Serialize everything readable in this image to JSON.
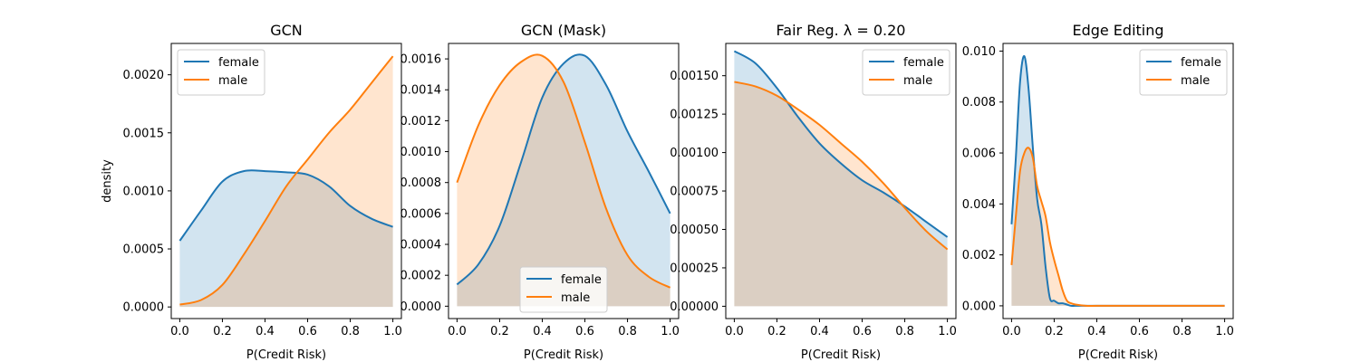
{
  "chart_data": [
    {
      "type": "area",
      "title": "GCN",
      "xlabel": "P(Credit Risk)",
      "ylabel": "density",
      "xlim": [
        -0.04,
        1.04
      ],
      "ylim": [
        -0.0001,
        0.00227
      ],
      "xticks": [
        "0.0",
        "0.2",
        "0.4",
        "0.6",
        "0.8",
        "1.0"
      ],
      "yticks": [
        "0.0000",
        "0.0005",
        "0.0010",
        "0.0015",
        "0.0020"
      ],
      "legend_position": "upper-left",
      "x": [
        0.0,
        0.1,
        0.2,
        0.3,
        0.4,
        0.5,
        0.6,
        0.7,
        0.8,
        0.9,
        1.0
      ],
      "series": [
        {
          "name": "female",
          "color": "#1f77b4",
          "values": [
            0.00057,
            0.00083,
            0.00108,
            0.00117,
            0.00117,
            0.00116,
            0.00114,
            0.00104,
            0.00087,
            0.00076,
            0.00069
          ]
        },
        {
          "name": "male",
          "color": "#ff7f0e",
          "values": [
            2e-05,
            6e-05,
            0.00019,
            0.00045,
            0.00074,
            0.00104,
            0.00127,
            0.0015,
            0.0017,
            0.00193,
            0.00216
          ]
        }
      ]
    },
    {
      "type": "area",
      "title": "GCN (Mask)",
      "xlabel": "P(Credit Risk)",
      "ylabel": "",
      "xlim": [
        -0.04,
        1.04
      ],
      "ylim": [
        -8e-05,
        0.0017
      ],
      "xticks": [
        "0.0",
        "0.2",
        "0.4",
        "0.6",
        "0.8",
        "1.0"
      ],
      "yticks": [
        "0.0000",
        "0.0002",
        "0.0004",
        "0.0006",
        "0.0008",
        "0.0010",
        "0.0012",
        "0.0014",
        "0.0016"
      ],
      "legend_position": "lower-center",
      "x": [
        0.0,
        0.1,
        0.2,
        0.3,
        0.4,
        0.5,
        0.6,
        0.7,
        0.8,
        0.9,
        1.0
      ],
      "series": [
        {
          "name": "female",
          "color": "#1f77b4",
          "values": [
            0.00014,
            0.00027,
            0.00052,
            0.00093,
            0.00135,
            0.00157,
            0.00162,
            0.00143,
            0.00113,
            0.00087,
            0.0006
          ]
        },
        {
          "name": "male",
          "color": "#ff7f0e",
          "values": [
            0.0008,
            0.00117,
            0.00143,
            0.00158,
            0.00162,
            0.00145,
            0.00106,
            0.00063,
            0.00033,
            0.00019,
            0.00012
          ]
        }
      ]
    },
    {
      "type": "area",
      "title": "Fair Reg. λ = 0.20",
      "xlabel": "P(Credit Risk)",
      "ylabel": "",
      "xlim": [
        -0.04,
        1.04
      ],
      "ylim": [
        -8e-05,
        0.00171
      ],
      "xticks": [
        "0.0",
        "0.2",
        "0.4",
        "0.6",
        "0.8",
        "1.0"
      ],
      "yticks": [
        "0.00000",
        "0.00025",
        "0.00050",
        "0.00075",
        "0.00100",
        "0.00125",
        "0.00150"
      ],
      "legend_position": "upper-right",
      "x": [
        0.0,
        0.1,
        0.2,
        0.3,
        0.4,
        0.5,
        0.6,
        0.7,
        0.8,
        0.9,
        1.0
      ],
      "series": [
        {
          "name": "female",
          "color": "#1f77b4",
          "values": [
            0.00166,
            0.00158,
            0.00142,
            0.00123,
            0.00106,
            0.00093,
            0.00082,
            0.00074,
            0.00065,
            0.00055,
            0.00045
          ]
        },
        {
          "name": "male",
          "color": "#ff7f0e",
          "values": [
            0.00146,
            0.00143,
            0.00137,
            0.00128,
            0.00118,
            0.00106,
            0.00094,
            0.0008,
            0.00064,
            0.00049,
            0.00037
          ]
        }
      ]
    },
    {
      "type": "area",
      "title": "Edge Editing",
      "xlabel": "P(Credit Risk)",
      "ylabel": "",
      "xlim": [
        -0.04,
        1.04
      ],
      "ylim": [
        -0.0005,
        0.0103
      ],
      "xticks": [
        "0.0",
        "0.2",
        "0.4",
        "0.6",
        "0.8",
        "1.0"
      ],
      "yticks": [
        "0.000",
        "0.002",
        "0.004",
        "0.006",
        "0.008",
        "0.010"
      ],
      "legend_position": "upper-right",
      "x": [
        0.0,
        0.02,
        0.04,
        0.06,
        0.08,
        0.1,
        0.12,
        0.14,
        0.16,
        0.18,
        0.2,
        0.22,
        0.24,
        0.26,
        0.28,
        0.3,
        0.35,
        0.4,
        0.5,
        1.0
      ],
      "series": [
        {
          "name": "female",
          "color": "#1f77b4",
          "values": [
            0.0032,
            0.0058,
            0.0088,
            0.0098,
            0.0085,
            0.0062,
            0.0042,
            0.0032,
            0.0015,
            0.0003,
            0.0002,
            0.0001,
            0.0001,
            5e-05,
            0.0,
            0.0,
            0.0,
            0.0,
            0.0,
            0.0
          ]
        },
        {
          "name": "male",
          "color": "#ff7f0e",
          "values": [
            0.0016,
            0.0035,
            0.0053,
            0.006,
            0.0062,
            0.0058,
            0.0047,
            0.0041,
            0.0035,
            0.0025,
            0.0018,
            0.0012,
            0.0006,
            0.0002,
            0.0001,
            5e-05,
            0.0,
            0.0,
            0.0,
            0.0
          ]
        }
      ]
    }
  ]
}
